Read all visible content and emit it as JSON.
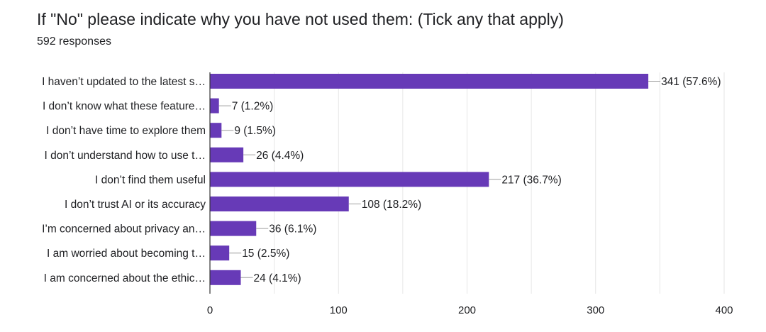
{
  "header": {
    "title": "If \"No\" please indicate why you have not used them: (Tick any that apply)",
    "responses": "592 responses"
  },
  "colors": {
    "bar": "#673ab7",
    "grid": "#e6e6e6",
    "axis": "#333333",
    "leader": "#9e9e9e"
  },
  "chart_data": {
    "type": "bar",
    "orientation": "horizontal",
    "categories": [
      "I haven’t updated to the latest s…",
      "I don’t know what these feature…",
      "I don’t have time to explore them",
      "I don’t understand how to use t…",
      "I don’t find them useful",
      "I don’t trust AI or its accuracy",
      "I’m concerned about privacy an…",
      "I am worried about becoming t…",
      "I am concerned about the ethic…"
    ],
    "values": [
      341,
      7,
      9,
      26,
      217,
      108,
      36,
      15,
      24
    ],
    "data_labels": [
      "341 (57.6%)",
      "7 (1.2%)",
      "9 (1.5%)",
      "26 (4.4%)",
      "217 (36.7%)",
      "108 (18.2%)",
      "36 (6.1%)",
      "15 (2.5%)",
      "24 (4.1%)"
    ],
    "xlim": [
      0,
      400
    ],
    "x_ticks": [
      0,
      100,
      200,
      300,
      400
    ],
    "x_tick_labels": [
      "0",
      "100",
      "200",
      "300",
      "400"
    ],
    "grid": true
  }
}
